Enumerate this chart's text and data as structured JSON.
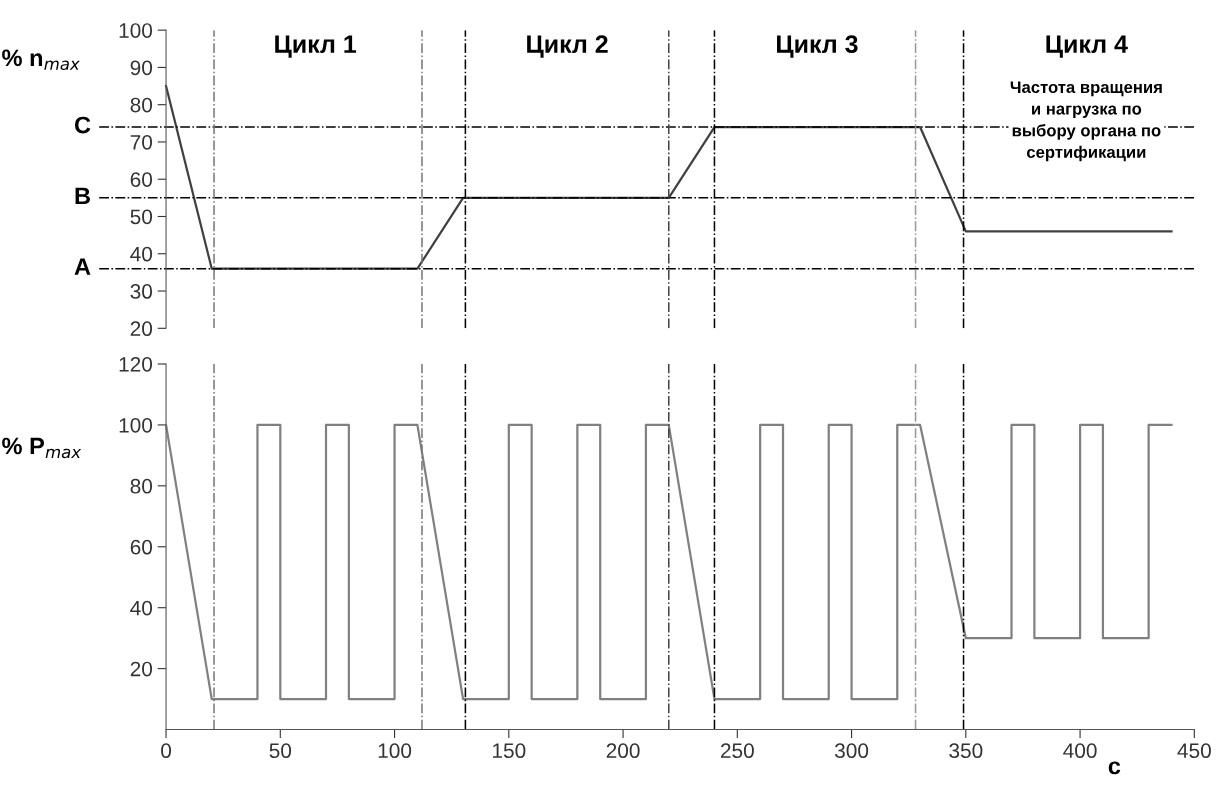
{
  "chart_data": [
    {
      "type": "line",
      "ylabel": "% n$_{max}$",
      "tick_labels": "y",
      "grid": false,
      "legend": false,
      "xlim": [
        0,
        450
      ],
      "ylim": [
        20,
        100
      ],
      "yticks": [
        20,
        30,
        40,
        50,
        60,
        70,
        80,
        90,
        100
      ],
      "series": [
        {
          "color": "#404040",
          "x": [
            0,
            20,
            110,
            130,
            220,
            240,
            330,
            350,
            440
          ],
          "values": [
            85,
            36,
            36,
            55,
            55,
            74,
            74,
            46,
            46
          ]
        }
      ],
      "ref_lines": [
        {
          "axis": "y",
          "value": 36,
          "label": "A",
          "color": "#000000",
          "line_style": "dashdot"
        },
        {
          "axis": "y",
          "value": 55,
          "label": "B",
          "color": "#000000",
          "line_style": "dashdot"
        },
        {
          "axis": "y",
          "value": 74,
          "label": "C",
          "color": "#000000",
          "line_style": "dashdot"
        },
        {
          "axis": "x",
          "value": 21,
          "color": "#777777",
          "line_style": "dashdot"
        },
        {
          "axis": "x",
          "value": 112,
          "color": "#777777",
          "line_style": "dashdot"
        },
        {
          "axis": "x",
          "value": 131,
          "color": "#000000",
          "line_style": "dashdot"
        },
        {
          "axis": "x",
          "value": 220,
          "color": "#444444",
          "line_style": "dashdot"
        },
        {
          "axis": "x",
          "value": 240,
          "color": "#000000",
          "line_style": "dashdot"
        },
        {
          "axis": "x",
          "value": 328,
          "color": "#999999",
          "line_style": "dashdot"
        },
        {
          "axis": "x",
          "value": 349,
          "color": "#000000",
          "line_style": "dashdot"
        }
      ],
      "annotations": [
        "Цикл 1",
        "Цикл 2",
        "Цикл 3",
        "Цикл 4",
        "Частота вращения\nи нагрузка по\nвыбору органа по\nсертификации"
      ]
    },
    {
      "type": "line",
      "ylabel": "% P$_{max}$",
      "xlabel": "c",
      "grid": false,
      "legend": false,
      "xlim": [
        0,
        450
      ],
      "xticks": [
        0,
        50,
        100,
        150,
        200,
        250,
        300,
        350,
        400,
        450
      ],
      "ylim": [
        0,
        120
      ],
      "yticks": [
        20,
        40,
        60,
        80,
        100,
        120
      ],
      "series": [
        {
          "color": "#808080",
          "x": [
            0,
            20,
            40,
            40,
            50,
            50,
            70,
            70,
            80,
            80,
            100,
            100,
            110,
            130,
            150,
            150,
            160,
            160,
            180,
            180,
            190,
            190,
            210,
            210,
            220,
            240,
            260,
            260,
            270,
            270,
            290,
            290,
            300,
            300,
            320,
            320,
            330,
            350,
            370,
            370,
            380,
            380,
            400,
            400,
            410,
            410,
            430,
            430,
            440
          ],
          "values": [
            100,
            10,
            10,
            100,
            100,
            10,
            10,
            100,
            100,
            10,
            10,
            100,
            100,
            10,
            10,
            100,
            100,
            10,
            10,
            100,
            100,
            10,
            10,
            100,
            100,
            10,
            10,
            100,
            100,
            10,
            10,
            100,
            100,
            10,
            10,
            100,
            100,
            30,
            30,
            100,
            100,
            30,
            30,
            100,
            100,
            30,
            30,
            100,
            100
          ]
        }
      ],
      "ref_lines": [
        {
          "axis": "x",
          "value": 21,
          "color": "#777777",
          "line_style": "dashdot"
        },
        {
          "axis": "x",
          "value": 112,
          "color": "#777777",
          "line_style": "dashdot"
        },
        {
          "axis": "x",
          "value": 131,
          "color": "#000000",
          "line_style": "dashdot"
        },
        {
          "axis": "x",
          "value": 220,
          "color": "#444444",
          "line_style": "dashdot"
        },
        {
          "axis": "x",
          "value": 240,
          "color": "#000000",
          "line_style": "dashdot"
        },
        {
          "axis": "x",
          "value": 328,
          "color": "#999999",
          "line_style": "dashdot"
        },
        {
          "axis": "x",
          "value": 349,
          "color": "#000000",
          "line_style": "dashdot"
        }
      ]
    }
  ]
}
